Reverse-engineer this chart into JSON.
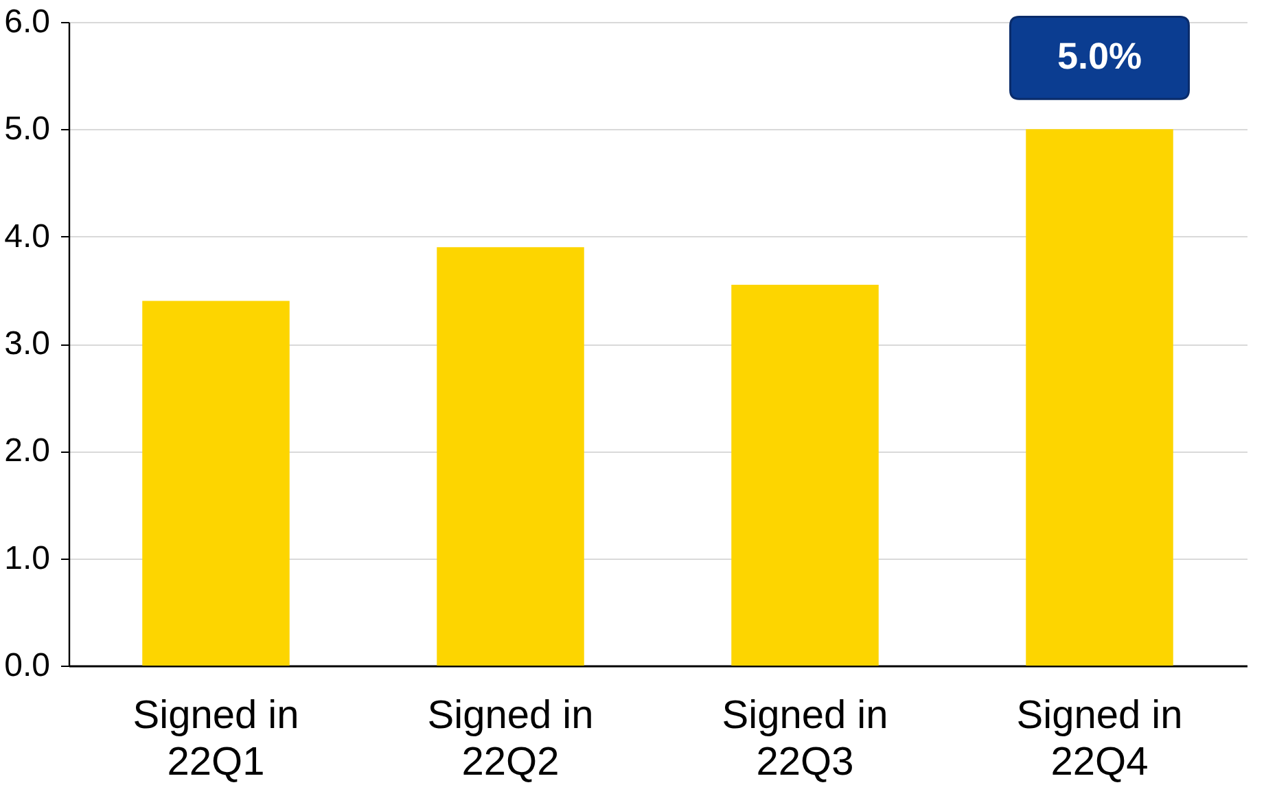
{
  "chart_data": {
    "type": "bar",
    "categories": [
      "Signed in 22Q1",
      "Signed in 22Q2",
      "Signed in 22Q3",
      "Signed in 22Q4"
    ],
    "values": [
      3.4,
      3.9,
      3.55,
      5.0
    ],
    "value_labels": [
      null,
      null,
      null,
      "5.0%"
    ],
    "color": "#fdd500",
    "ylim": [
      0,
      6
    ],
    "yticks": [
      {
        "value": 0,
        "label": "0.0"
      },
      {
        "value": 1,
        "label": "1.0"
      },
      {
        "value": 2,
        "label": "2.0"
      },
      {
        "value": 3,
        "label": "3.0"
      },
      {
        "value": 4,
        "label": "4.0"
      },
      {
        "value": 5,
        "label": "5.0"
      },
      {
        "value": 6,
        "label": "6.0"
      }
    ],
    "grid": "y"
  }
}
